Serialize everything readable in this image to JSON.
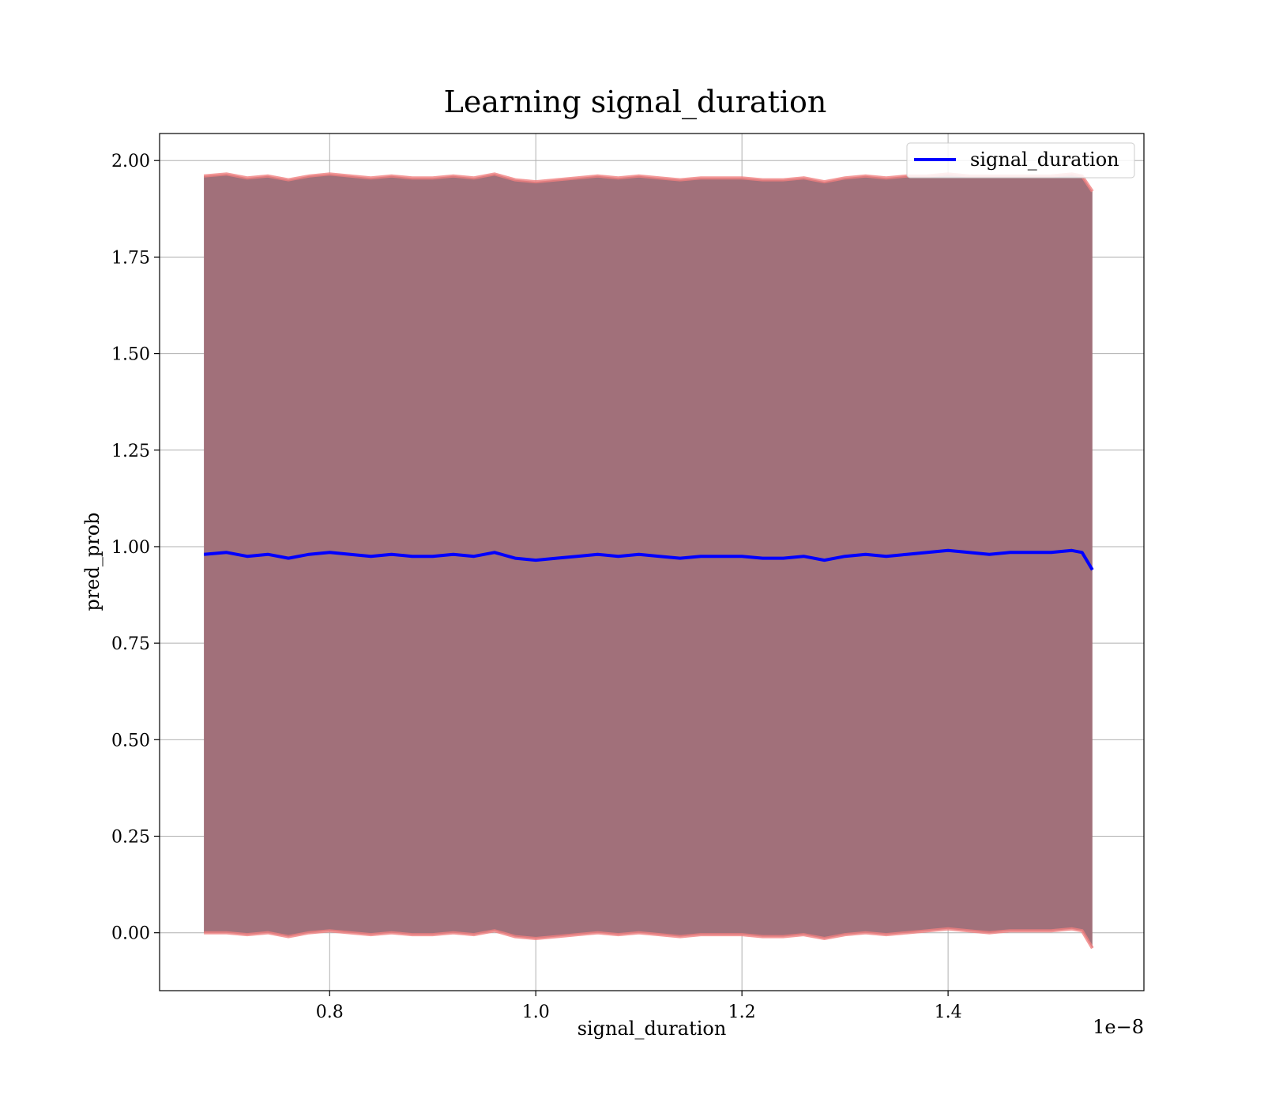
{
  "chart_data": {
    "type": "line",
    "title": "Learning signal_duration",
    "xlabel": "signal_duration",
    "ylabel": "pred_prob",
    "x_offset_text": "1e−8",
    "xlim": [
      6.35e-09,
      1.59e-08
    ],
    "ylim": [
      -0.15,
      2.07
    ],
    "xticks": [
      8e-09,
      1e-08,
      1.2e-08,
      1.4e-08
    ],
    "xtick_labels": [
      "0.8",
      "1.0",
      "1.2",
      "1.4"
    ],
    "yticks": [
      0,
      0.25,
      0.5,
      0.75,
      1.0,
      1.25,
      1.5,
      1.75,
      2.0
    ],
    "ytick_labels": [
      "0.00",
      "0.25",
      "0.50",
      "0.75",
      "1.00",
      "1.25",
      "1.50",
      "1.75",
      "2.00"
    ],
    "grid": true,
    "legend_position": "top-right",
    "colors": {
      "line": "#0000ff",
      "band_fill": "#a1707a",
      "band_edge": "#f08080"
    },
    "series": [
      {
        "name": "signal_duration",
        "x": [
          6.78e-09,
          7e-09,
          7.2e-09,
          7.4e-09,
          7.6e-09,
          7.8e-09,
          8e-09,
          8.2e-09,
          8.4e-09,
          8.6e-09,
          8.8e-09,
          9e-09,
          9.2e-09,
          9.4e-09,
          9.6e-09,
          9.8e-09,
          1e-08,
          1.02e-08,
          1.04e-08,
          1.06e-08,
          1.08e-08,
          1.1e-08,
          1.12e-08,
          1.14e-08,
          1.16e-08,
          1.18e-08,
          1.2e-08,
          1.22e-08,
          1.24e-08,
          1.26e-08,
          1.28e-08,
          1.3e-08,
          1.32e-08,
          1.34e-08,
          1.36e-08,
          1.38e-08,
          1.4e-08,
          1.42e-08,
          1.44e-08,
          1.46e-08,
          1.48e-08,
          1.5e-08,
          1.52e-08,
          1.53e-08,
          1.54e-08
        ],
        "y": [
          0.98,
          0.985,
          0.975,
          0.98,
          0.97,
          0.98,
          0.985,
          0.98,
          0.975,
          0.98,
          0.975,
          0.975,
          0.98,
          0.975,
          0.985,
          0.97,
          0.965,
          0.97,
          0.975,
          0.98,
          0.975,
          0.98,
          0.975,
          0.97,
          0.975,
          0.975,
          0.975,
          0.97,
          0.97,
          0.975,
          0.965,
          0.975,
          0.98,
          0.975,
          0.98,
          0.985,
          0.99,
          0.985,
          0.98,
          0.985,
          0.985,
          0.985,
          0.99,
          0.985,
          0.94
        ],
        "band_lower": [
          0.0,
          0.0,
          -0.005,
          0.0,
          -0.01,
          0.0,
          0.005,
          0.0,
          -0.005,
          0.0,
          -0.005,
          -0.005,
          0.0,
          -0.005,
          0.005,
          -0.01,
          -0.015,
          -0.01,
          -0.005,
          0.0,
          -0.005,
          0.0,
          -0.005,
          -0.01,
          -0.005,
          -0.005,
          -0.005,
          -0.01,
          -0.01,
          -0.005,
          -0.015,
          -0.005,
          0.0,
          -0.005,
          0.0,
          0.005,
          0.01,
          0.005,
          0.0,
          0.005,
          0.005,
          0.005,
          0.01,
          0.005,
          -0.04
        ],
        "band_upper": [
          1.96,
          1.965,
          1.955,
          1.96,
          1.95,
          1.96,
          1.965,
          1.96,
          1.955,
          1.96,
          1.955,
          1.955,
          1.96,
          1.955,
          1.965,
          1.95,
          1.945,
          1.95,
          1.955,
          1.96,
          1.955,
          1.96,
          1.955,
          1.95,
          1.955,
          1.955,
          1.955,
          1.95,
          1.95,
          1.955,
          1.945,
          1.955,
          1.96,
          1.955,
          1.96,
          1.96,
          1.965,
          1.96,
          1.96,
          1.96,
          1.96,
          1.96,
          1.965,
          1.96,
          1.92
        ]
      }
    ]
  }
}
